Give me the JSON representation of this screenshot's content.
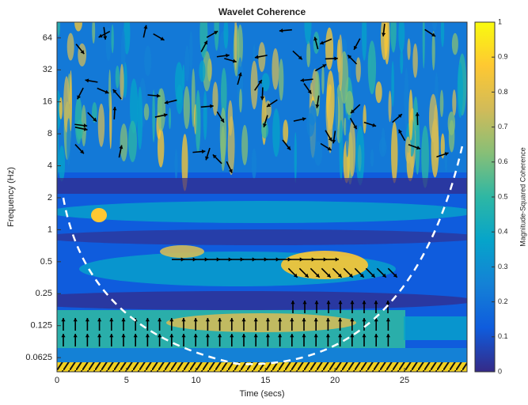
{
  "chart_data": {
    "type": "heatmap",
    "title": "Wavelet Coherence",
    "x_label": "Time (secs)",
    "y_label": "Frequency (Hz)",
    "colorbar_label": "Magnitude-Squared Coherence",
    "xlim": [
      0,
      29.5
    ],
    "xticks": [
      0,
      5,
      10,
      15,
      20,
      25
    ],
    "ylim": [
      0.046,
      90
    ],
    "yscale": "log",
    "yticks": [
      0.0625,
      0.125,
      0.25,
      0.5,
      1,
      2,
      4,
      8,
      16,
      32,
      64
    ],
    "clim": [
      0,
      1
    ],
    "cticks": [
      0,
      0.1,
      0.2,
      0.3,
      0.4,
      0.5,
      0.6,
      0.7,
      0.8,
      0.9,
      1
    ],
    "colormap": [
      "#352a87",
      "#0f5cdd",
      "#1481d6",
      "#06a4ca",
      "#2eb7a4",
      "#87bf77",
      "#d1bb59",
      "#fec832",
      "#f9fb0e"
    ]
  }
}
